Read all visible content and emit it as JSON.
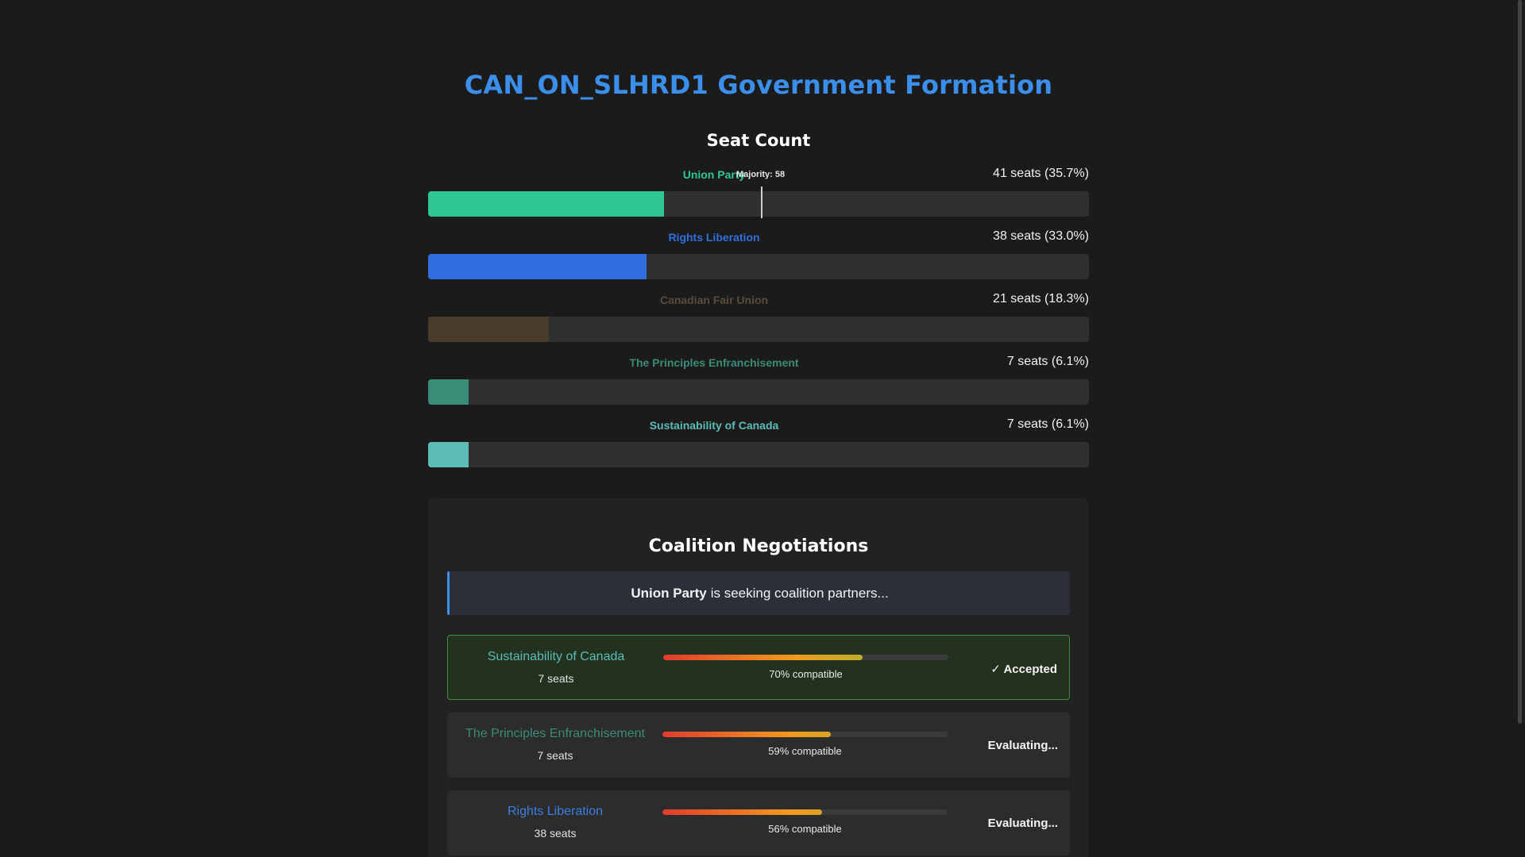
{
  "title": "CAN_ON_SLHRD1 Government Formation",
  "seat_count": {
    "heading": "Seat Count",
    "majority_label": "Majority: 58",
    "majority": 58,
    "total_seats": 115,
    "parties": [
      {
        "name": "Union Party",
        "seats_text": "41 seats (35.7%)",
        "seats": 41,
        "color": "#2ec795"
      },
      {
        "name": "Rights Liberation",
        "seats_text": "38 seats (33.0%)",
        "seats": 38,
        "color": "#2f6fe0"
      },
      {
        "name": "Canadian Fair Union",
        "seats_text": "21 seats (18.3%)",
        "seats": 21,
        "color": "#4a3c2c"
      },
      {
        "name": "The Principles Enfranchisement",
        "seats_text": "7 seats (6.1%)",
        "seats": 7,
        "color": "#3a8c77"
      },
      {
        "name": "Sustainability of Canada",
        "seats_text": "7 seats (6.1%)",
        "seats": 7,
        "color": "#5cbcb6"
      }
    ]
  },
  "coalition": {
    "heading": "Coalition Negotiations",
    "seeking_party": "Union Party",
    "seeking_text": "is seeking coalition partners...",
    "candidates": [
      {
        "name": "Sustainability of Canada",
        "seats_text": "7 seats",
        "compat": 70,
        "compat_text": "70% compatible",
        "status": "✓ Accepted",
        "accepted": true,
        "color": "#5cbcb6"
      },
      {
        "name": "The Principles Enfranchisement",
        "seats_text": "7 seats",
        "compat": 59,
        "compat_text": "59% compatible",
        "status": "Evaluating...",
        "accepted": false,
        "color": "#3a8c77"
      },
      {
        "name": "Rights Liberation",
        "seats_text": "38 seats",
        "compat": 56,
        "compat_text": "56% compatible",
        "status": "Evaluating...",
        "accepted": false,
        "color": "#3b7fe0"
      }
    ]
  }
}
